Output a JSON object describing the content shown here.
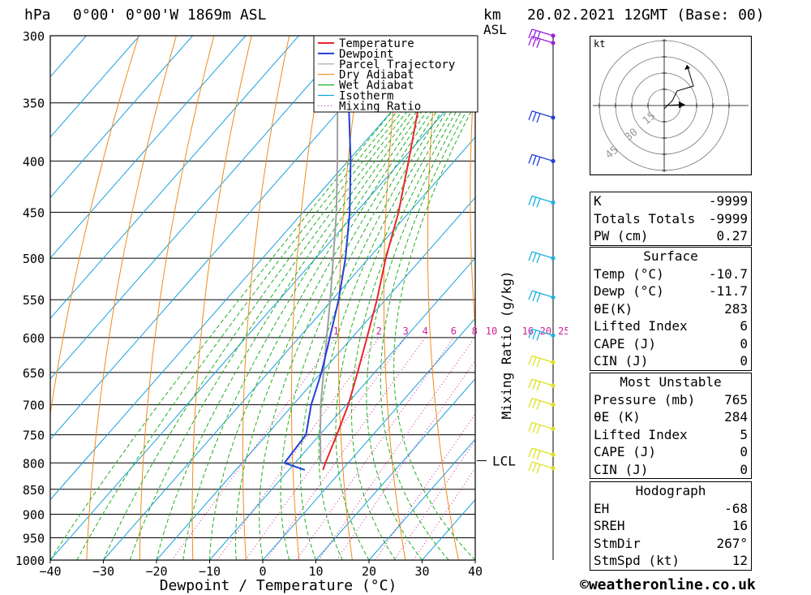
{
  "header": {
    "unit_pressure": "hPa",
    "location": "0°00' 0°00'W 1869m ASL",
    "unit_height_line1": "km",
    "unit_height_line2": "ASL",
    "datetime": "20.02.2021 12GMT (Base: 00)"
  },
  "footer": {
    "copyright": "©weatheronline.co.uk"
  },
  "chart_data": {
    "type": "line",
    "subtype": "skew-T log-p",
    "xlabel": "Dewpoint / Temperature (°C)",
    "ylabel_right": "Mixing Ratio (g/kg)",
    "x_ticks": [
      "−40",
      "−30",
      "−20",
      "−10",
      "0",
      "10",
      "20",
      "30",
      "40"
    ],
    "pressure_levels": [
      300,
      350,
      400,
      450,
      500,
      550,
      600,
      650,
      700,
      750,
      800,
      850,
      900,
      950,
      1000
    ],
    "lcl_label": "LCL",
    "lcl_pressure": 796,
    "legend": [
      "Temperature",
      "Dewpoint",
      "Parcel Trajectory",
      "Dry Adiabat",
      "Wet Adiabat",
      "Isotherm",
      "Mixing Ratio"
    ],
    "colors": {
      "temperature": "#e8272a",
      "dewpoint": "#1f3fd8",
      "parcel": "#a0a0a0",
      "dry_adiabat": "#f08a1c",
      "wet_adiabat": "#20b020",
      "isotherm": "#1aa0e0",
      "mixing_ratio": "#d0209a"
    },
    "mixing_ratio_labels": [
      "1",
      "2",
      "3",
      "4",
      "6",
      "8",
      "10",
      "16",
      "20",
      "25"
    ],
    "temperature_profile": [
      {
        "p": 813,
        "t": -3.6
      },
      {
        "p": 800,
        "t": -4.3
      },
      {
        "p": 750,
        "t": -6.8
      },
      {
        "p": 700,
        "t": -9.6
      },
      {
        "p": 650,
        "t": -13.2
      },
      {
        "p": 600,
        "t": -17.2
      },
      {
        "p": 550,
        "t": -21.6
      },
      {
        "p": 500,
        "t": -26.8
      },
      {
        "p": 450,
        "t": -32.0
      },
      {
        "p": 400,
        "t": -38.6
      },
      {
        "p": 350,
        "t": -46.2
      },
      {
        "p": 300,
        "t": -54.5
      }
    ],
    "dewpoint_profile": [
      {
        "p": 813,
        "t": -7.0
      },
      {
        "p": 800,
        "t": -12.0
      },
      {
        "p": 750,
        "t": -12.6
      },
      {
        "p": 700,
        "t": -16.6
      },
      {
        "p": 650,
        "t": -20.0
      },
      {
        "p": 600,
        "t": -24.2
      },
      {
        "p": 550,
        "t": -28.8
      },
      {
        "p": 500,
        "t": -34.4
      },
      {
        "p": 450,
        "t": -41.2
      },
      {
        "p": 400,
        "t": -49.5
      },
      {
        "p": 350,
        "t": -59.5
      },
      {
        "p": 300,
        "t": -70.5
      }
    ],
    "parcel_profile": [
      {
        "p": 800,
        "t": -5.2
      },
      {
        "p": 750,
        "t": -9.9
      },
      {
        "p": 700,
        "t": -14.8
      },
      {
        "p": 650,
        "t": -19.6
      },
      {
        "p": 600,
        "t": -24.8
      },
      {
        "p": 550,
        "t": -30.4
      },
      {
        "p": 500,
        "t": -36.7
      },
      {
        "p": 450,
        "t": -43.7
      },
      {
        "p": 400,
        "t": -52.0
      },
      {
        "p": 350,
        "t": -61.6
      },
      {
        "p": 300,
        "t": -72.5
      }
    ],
    "wind_levels": [
      {
        "p": 300,
        "color": "#9b1ee0"
      },
      {
        "p": 305,
        "color": "#9b1ee0"
      },
      {
        "p": 362,
        "color": "#1f3fd8"
      },
      {
        "p": 400,
        "color": "#1f3fd8"
      },
      {
        "p": 440,
        "color": "#1ab0e0"
      },
      {
        "p": 500,
        "color": "#1ab0e0"
      },
      {
        "p": 547,
        "color": "#1ab0e0"
      },
      {
        "p": 597,
        "color": "#1ab0e0"
      },
      {
        "p": 635,
        "color": "#e0e020"
      },
      {
        "p": 670,
        "color": "#e0e020"
      },
      {
        "p": 700,
        "color": "#e0e020"
      },
      {
        "p": 740,
        "color": "#e0e020"
      },
      {
        "p": 785,
        "color": "#e0e020"
      },
      {
        "p": 810,
        "color": "#e0e020"
      }
    ]
  },
  "hodograph": {
    "unit": "kt",
    "ring_labels": [
      "15",
      "30",
      "45"
    ]
  },
  "indices": [
    {
      "label": "K",
      "value": "-9999"
    },
    {
      "label": "Totals Totals",
      "value": "-9999"
    },
    {
      "label": "PW (cm)",
      "value": "0.27"
    }
  ],
  "surface": {
    "title": "Surface",
    "rows": [
      {
        "label": "Temp (°C)",
        "value": "-10.7"
      },
      {
        "label": "Dewp (°C)",
        "value": "-11.7"
      },
      {
        "label": "θE(K)",
        "value": "283"
      },
      {
        "label": "Lifted Index",
        "value": "6"
      },
      {
        "label": "CAPE (J)",
        "value": "0"
      },
      {
        "label": "CIN (J)",
        "value": "0"
      }
    ]
  },
  "most_unstable": {
    "title": "Most Unstable",
    "rows": [
      {
        "label": "Pressure (mb)",
        "value": "765"
      },
      {
        "label": "θE (K)",
        "value": "284"
      },
      {
        "label": "Lifted Index",
        "value": "5"
      },
      {
        "label": "CAPE (J)",
        "value": "0"
      },
      {
        "label": "CIN (J)",
        "value": "0"
      }
    ]
  },
  "hodograph_table": {
    "title": "Hodograph",
    "rows": [
      {
        "label": "EH",
        "value": "-68"
      },
      {
        "label": "SREH",
        "value": "16"
      },
      {
        "label": "StmDir",
        "value": "267°"
      },
      {
        "label": "StmSpd (kt)",
        "value": "12"
      }
    ]
  }
}
